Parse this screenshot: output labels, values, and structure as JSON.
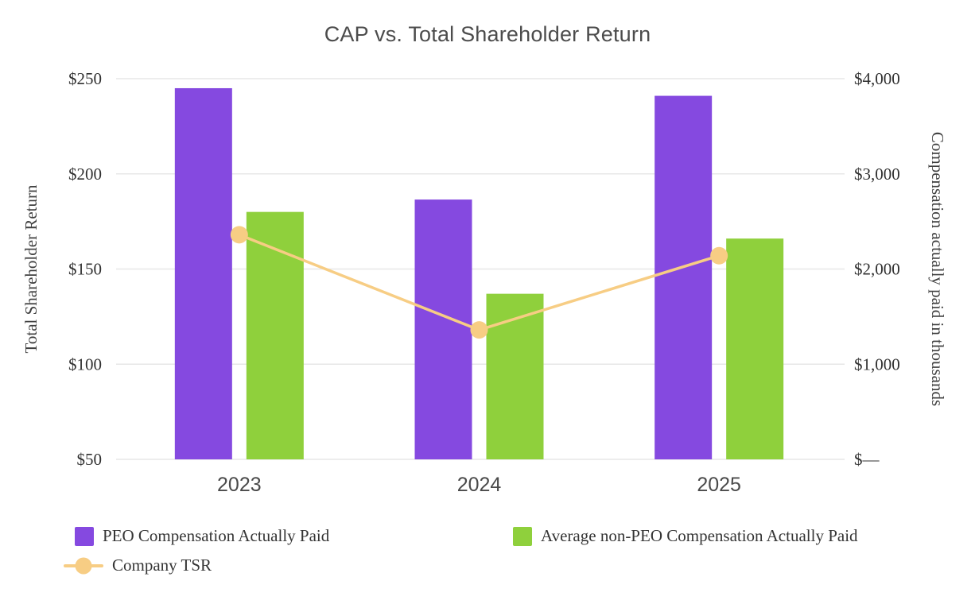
{
  "chart_data": {
    "type": "bar",
    "title": "CAP vs. Total Shareholder Return",
    "categories": [
      "2023",
      "2024",
      "2025"
    ],
    "bar_series": [
      {
        "name": "PEO Compensation Actually Paid",
        "color": "#8549E0",
        "axis": "right",
        "values": [
          3900,
          2730,
          3820
        ]
      },
      {
        "name": "Average non-PEO Compensation Actually Paid",
        "color": "#8FD03C",
        "axis": "right",
        "values": [
          2600,
          1740,
          2320
        ]
      }
    ],
    "line_series": [
      {
        "name": "Company TSR",
        "color": "#F7CD84",
        "axis": "left",
        "values": [
          168,
          118,
          157
        ]
      }
    ],
    "left_axis": {
      "label": "Total Shareholder Return",
      "min": 50,
      "max": 250,
      "ticks": [
        50,
        100,
        150,
        200,
        250
      ],
      "tick_labels": [
        "$50",
        "$100",
        "$150",
        "$200",
        "$250"
      ]
    },
    "right_axis": {
      "label": "Compensation actually paid in thousands",
      "min": 0,
      "max": 4000,
      "ticks": [
        0,
        1000,
        2000,
        3000,
        4000
      ],
      "tick_labels": [
        "$—",
        "$1,000",
        "$2,000",
        "$3,000",
        "$4,000"
      ]
    },
    "grid": "horizontal",
    "legend_position": "bottom-left",
    "gridline_color": "#e7e7e7"
  }
}
